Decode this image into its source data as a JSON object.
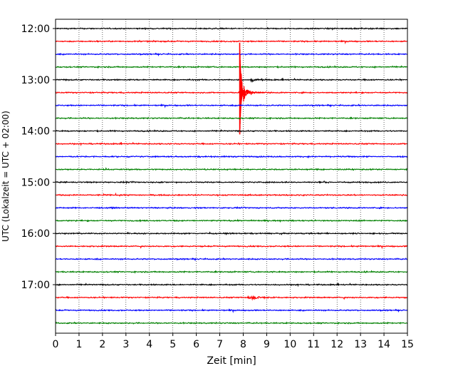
{
  "chart_data": {
    "type": "line",
    "title": "",
    "xlabel": "Zeit  [min]",
    "ylabel": "UTC (Lokalzeit = UTC + 02:00)",
    "xlim": [
      0,
      15
    ],
    "x_ticks": [
      "0",
      "1",
      "2",
      "3",
      "4",
      "5",
      "6",
      "7",
      "8",
      "9",
      "10",
      "11",
      "12",
      "13",
      "14",
      "15"
    ],
    "y_ticks": [
      "12:00",
      "13:00",
      "14:00",
      "15:00",
      "16:00",
      "17:00"
    ],
    "grid": "vertical dotted at each minute",
    "trace_interval_min": 15,
    "color_cycle": [
      "#000000",
      "#ff0000",
      "#0000ff",
      "#008000"
    ],
    "series": [
      {
        "start": "12:00",
        "color": "#000000",
        "events": [
          {
            "t": 11.8,
            "amp": 1.2,
            "dur": 0.3
          }
        ]
      },
      {
        "start": "12:15",
        "color": "#ff0000",
        "events": []
      },
      {
        "start": "12:30",
        "color": "#0000ff",
        "events": []
      },
      {
        "start": "12:45",
        "color": "#008000",
        "events": []
      },
      {
        "start": "13:00",
        "color": "#000000",
        "events": [
          {
            "t": 8.3,
            "amp": 1.5,
            "dur": 1.0
          }
        ]
      },
      {
        "start": "13:15",
        "color": "#ff0000",
        "events": [
          {
            "t": 7.85,
            "amp": 20,
            "dur": 0.6,
            "spike": true
          }
        ]
      },
      {
        "start": "13:30",
        "color": "#0000ff",
        "events": []
      },
      {
        "start": "13:45",
        "color": "#008000",
        "events": []
      },
      {
        "start": "14:00",
        "color": "#000000",
        "events": []
      },
      {
        "start": "14:15",
        "color": "#ff0000",
        "events": []
      },
      {
        "start": "14:30",
        "color": "#0000ff",
        "events": []
      },
      {
        "start": "14:45",
        "color": "#008000",
        "events": []
      },
      {
        "start": "15:00",
        "color": "#000000",
        "events": []
      },
      {
        "start": "15:15",
        "color": "#ff0000",
        "events": []
      },
      {
        "start": "15:30",
        "color": "#0000ff",
        "events": []
      },
      {
        "start": "15:45",
        "color": "#008000",
        "events": []
      },
      {
        "start": "16:00",
        "color": "#000000",
        "events": []
      },
      {
        "start": "16:15",
        "color": "#ff0000",
        "events": []
      },
      {
        "start": "16:30",
        "color": "#0000ff",
        "events": []
      },
      {
        "start": "16:45",
        "color": "#008000",
        "events": []
      },
      {
        "start": "17:00",
        "color": "#000000",
        "events": []
      },
      {
        "start": "17:15",
        "color": "#ff0000",
        "events": [
          {
            "t": 8.2,
            "amp": 2.0,
            "dur": 1.3
          }
        ]
      },
      {
        "start": "17:30",
        "color": "#0000ff",
        "events": []
      },
      {
        "start": "17:45",
        "color": "#008000",
        "events": []
      }
    ]
  }
}
